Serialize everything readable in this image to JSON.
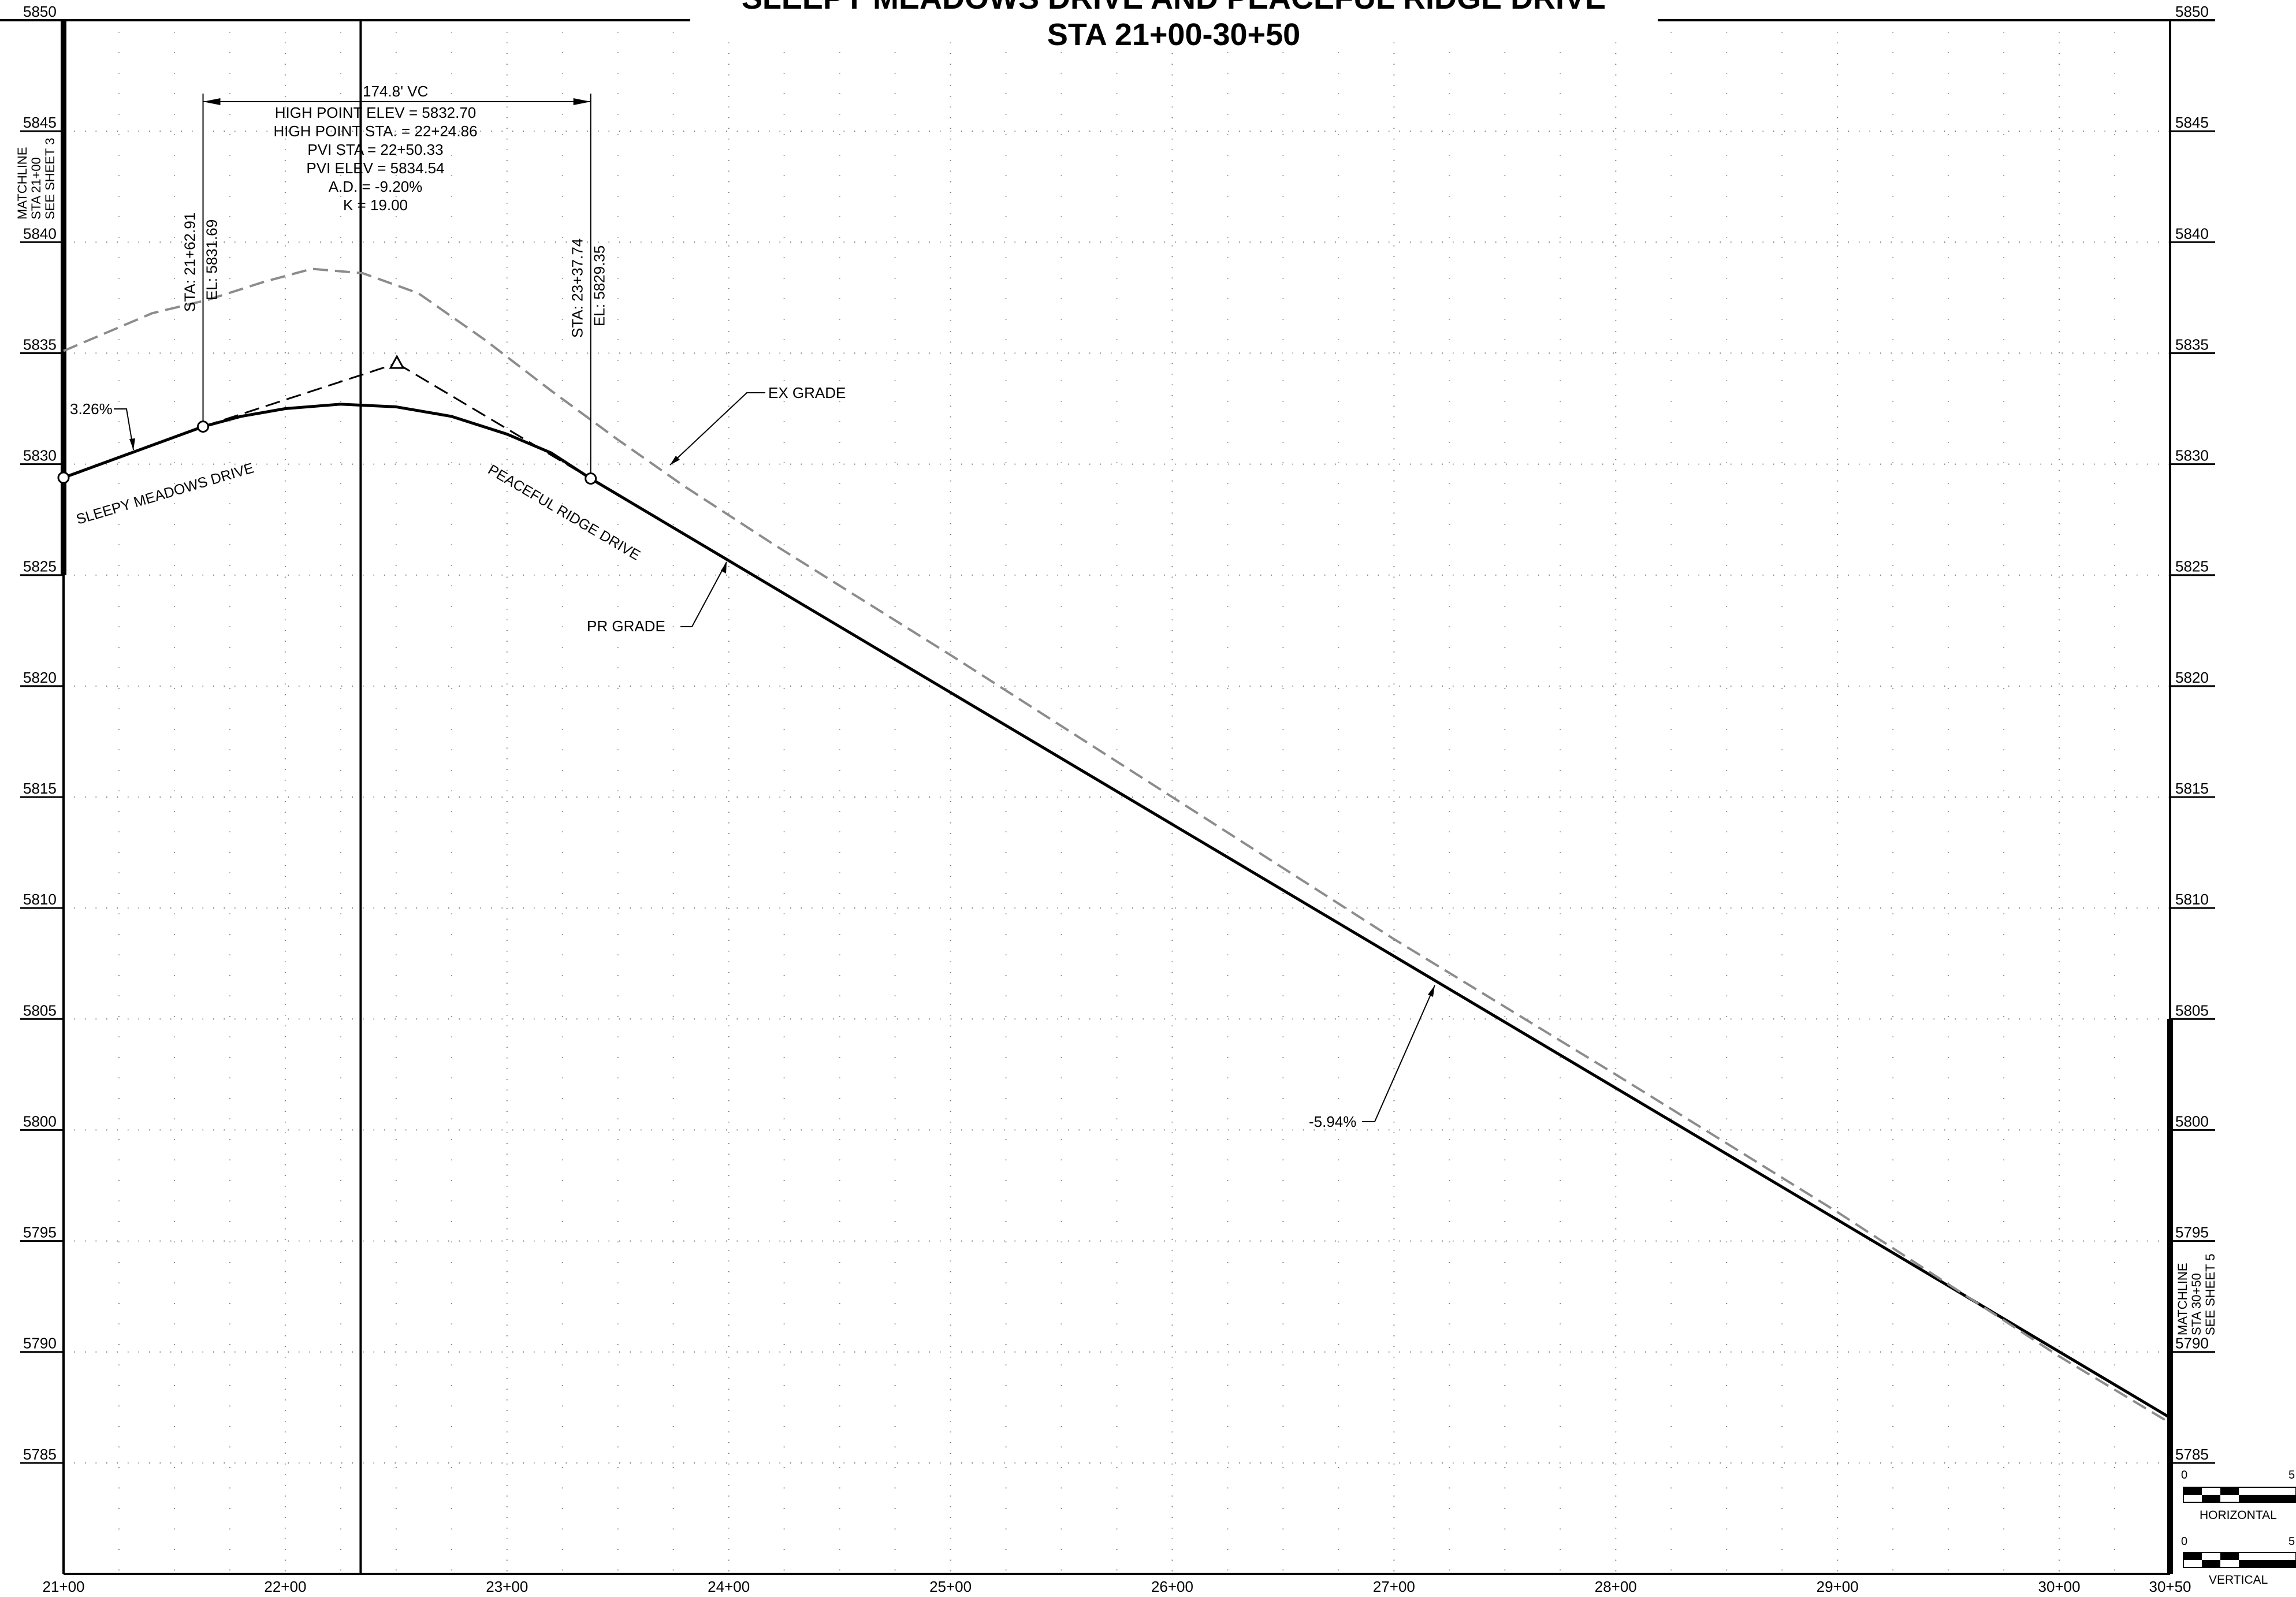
{
  "title": {
    "line1": "SLEEPY MEADOWS DRIVE AND PEACEFUL RIDGE DRIVE",
    "line2": "STA 21+00-30+50"
  },
  "chart_data": {
    "type": "line",
    "x_unit": "station (ft)",
    "y_unit": "elevation (ft)",
    "xlim": [
      2100,
      3050
    ],
    "ylim": [
      5780,
      5850
    ],
    "x_ticks": [
      2100,
      2200,
      2300,
      2400,
      2500,
      2600,
      2700,
      2800,
      2900,
      3000,
      3050
    ],
    "x_tick_labels": [
      "21+00",
      "22+00",
      "23+00",
      "24+00",
      "25+00",
      "26+00",
      "27+00",
      "28+00",
      "29+00",
      "30+00",
      "30+50"
    ],
    "y_ticks": [
      5850,
      5845,
      5840,
      5835,
      5830,
      5825,
      5820,
      5815,
      5810,
      5805,
      5800,
      5795,
      5790,
      5785
    ],
    "y_tick_labels": [
      "5850",
      "5845",
      "5840",
      "5835",
      "5830",
      "5825",
      "5820",
      "5815",
      "5810",
      "5805",
      "5800",
      "5795",
      "5790",
      "5785"
    ],
    "grid": true,
    "series": [
      {
        "name": "PR GRADE",
        "style": "solid",
        "color": "#000000",
        "points": [
          [
            2100,
            5829.39
          ],
          [
            2162.91,
            5831.69
          ],
          [
            2180,
            5832.15
          ],
          [
            2200,
            5832.5
          ],
          [
            2224.86,
            5832.7
          ],
          [
            2250,
            5832.58
          ],
          [
            2275,
            5832.15
          ],
          [
            2300,
            5831.35
          ],
          [
            2320,
            5830.5
          ],
          [
            2337.74,
            5829.35
          ],
          [
            3050,
            5787.04
          ]
        ]
      },
      {
        "name": "EX GRADE",
        "style": "dashed",
        "color": "#8c8c8c",
        "points": [
          [
            2100,
            5835.1
          ],
          [
            2140,
            5836.8
          ],
          [
            2165,
            5837.4
          ],
          [
            2190,
            5838.2
          ],
          [
            2212,
            5838.8
          ],
          [
            2235,
            5838.6
          ],
          [
            2260,
            5837.7
          ],
          [
            2290,
            5835.6
          ],
          [
            2320,
            5833.3
          ],
          [
            2350,
            5831.1
          ],
          [
            2380,
            5829.0
          ],
          [
            2420,
            5826.4
          ],
          [
            2500,
            5821.4
          ],
          [
            2600,
            5815.0
          ],
          [
            2700,
            5808.6
          ],
          [
            2800,
            5802.5
          ],
          [
            2900,
            5796.3
          ],
          [
            3000,
            5789.8
          ],
          [
            3050,
            5786.8
          ]
        ]
      }
    ],
    "tangent_lines": [
      [
        [
          2162.91,
          5831.69
        ],
        [
          2250.33,
          5834.54
        ]
      ],
      [
        [
          2250.33,
          5834.54
        ],
        [
          2337.74,
          5829.35
        ]
      ]
    ],
    "vertical_curve": {
      "length_label": "174.8' VC",
      "bvc": {
        "sta": 2162.91,
        "elev": 5831.69,
        "sta_label": "STA: 21+62.91",
        "el_label": "EL: 5831.69"
      },
      "evc": {
        "sta": 2337.74,
        "elev": 5829.35,
        "sta_label": "STA: 23+37.74",
        "el_label": "EL: 5829.35"
      },
      "pvi": {
        "sta": 2250.33,
        "elev": 5834.54
      },
      "info_lines": [
        "HIGH POINT ELEV = 5832.70",
        "HIGH POINT STA. = 22+24.86",
        "PVI STA = 22+50.33",
        "PVI ELEV = 5834.54",
        "A.D. = -9.20%",
        "K = 19.00"
      ]
    },
    "profile_break_station": 2234,
    "annotations": {
      "grade_in": "3.26%",
      "grade_out": "-5.94%",
      "road_left": "SLEEPY MEADOWS DRIVE",
      "road_right": "PEACEFUL RIDGE DRIVE",
      "ex_grade_label": "EX GRADE",
      "pr_grade_label": "PR GRADE"
    }
  },
  "matchlines": {
    "left": [
      "MATCHLINE",
      "STA 21+00",
      "SEE SHEET 3"
    ],
    "right": [
      "MATCHLINE",
      "STA 30+50",
      "SEE SHEET 5"
    ]
  },
  "scale_bars": {
    "horizontal": {
      "label": "HORIZONTAL",
      "start": "0",
      "end": "5"
    },
    "vertical": {
      "label": "VERTICAL",
      "start": "0",
      "end": "5"
    }
  }
}
